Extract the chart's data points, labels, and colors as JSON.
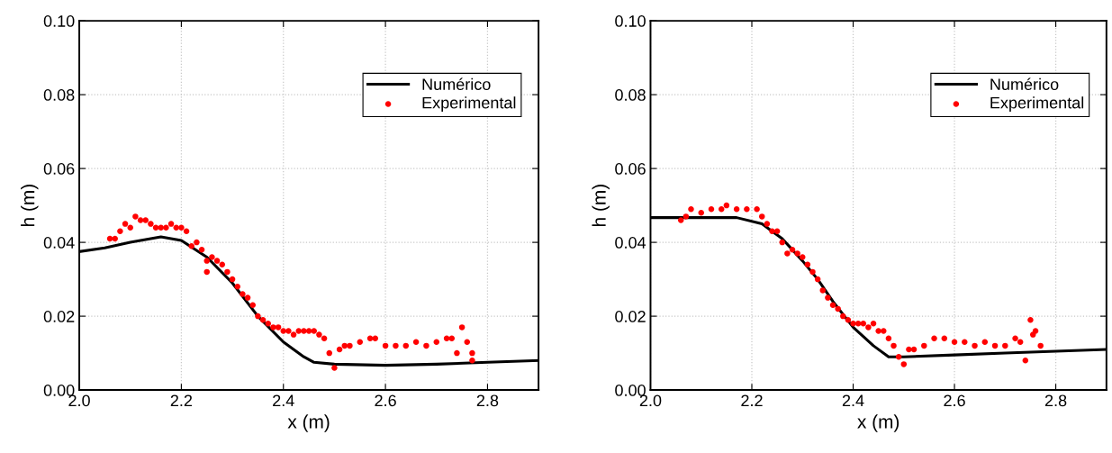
{
  "chart_data": [
    {
      "type": "line",
      "xlabel": "x (m)",
      "ylabel": "h (m)",
      "xlim": [
        2.0,
        2.9
      ],
      "ylim": [
        0.0,
        0.1
      ],
      "xticks": [
        {
          "value": 2.0,
          "label": "2.0"
        },
        {
          "value": 2.2,
          "label": "2.2"
        },
        {
          "value": 2.4,
          "label": "2.4"
        },
        {
          "value": 2.6,
          "label": "2.6"
        },
        {
          "value": 2.8,
          "label": "2.8"
        }
      ],
      "yticks": [
        {
          "value": 0.0,
          "label": "0.00"
        },
        {
          "value": 0.02,
          "label": "0.02"
        },
        {
          "value": 0.04,
          "label": "0.04"
        },
        {
          "value": 0.06,
          "label": "0.06"
        },
        {
          "value": 0.08,
          "label": "0.08"
        },
        {
          "value": 0.1,
          "label": "0.10"
        }
      ],
      "grid": true,
      "legend": "top right",
      "series": [
        {
          "name": "Numérico",
          "color": "#000000",
          "marker": "none",
          "line_style": "solid",
          "x": [
            2.0,
            2.05,
            2.1,
            2.16,
            2.2,
            2.25,
            2.3,
            2.35,
            2.4,
            2.44,
            2.46,
            2.5,
            2.6,
            2.7,
            2.8,
            2.9
          ],
          "values": [
            0.0375,
            0.0385,
            0.04,
            0.0415,
            0.0405,
            0.036,
            0.029,
            0.02,
            0.013,
            0.009,
            0.0075,
            0.007,
            0.0067,
            0.007,
            0.0075,
            0.008
          ]
        },
        {
          "name": "Experimental",
          "type": "scatter",
          "color": "#ff0000",
          "marker": "circle",
          "x": [
            2.06,
            2.07,
            2.08,
            2.09,
            2.1,
            2.11,
            2.12,
            2.13,
            2.14,
            2.15,
            2.16,
            2.17,
            2.18,
            2.19,
            2.2,
            2.21,
            2.22,
            2.23,
            2.24,
            2.25,
            2.25,
            2.26,
            2.27,
            2.28,
            2.29,
            2.3,
            2.31,
            2.32,
            2.33,
            2.34,
            2.35,
            2.36,
            2.37,
            2.38,
            2.39,
            2.4,
            2.41,
            2.42,
            2.43,
            2.44,
            2.45,
            2.46,
            2.47,
            2.48,
            2.49,
            2.5,
            2.51,
            2.52,
            2.53,
            2.55,
            2.57,
            2.58,
            2.6,
            2.62,
            2.64,
            2.66,
            2.68,
            2.7,
            2.72,
            2.73,
            2.74,
            2.75,
            2.76,
            2.77,
            2.77
          ],
          "values": [
            0.041,
            0.041,
            0.043,
            0.045,
            0.044,
            0.047,
            0.046,
            0.046,
            0.045,
            0.044,
            0.044,
            0.044,
            0.045,
            0.044,
            0.044,
            0.043,
            0.039,
            0.04,
            0.038,
            0.035,
            0.032,
            0.036,
            0.035,
            0.034,
            0.032,
            0.03,
            0.028,
            0.026,
            0.025,
            0.023,
            0.02,
            0.019,
            0.018,
            0.017,
            0.017,
            0.016,
            0.016,
            0.015,
            0.016,
            0.016,
            0.016,
            0.016,
            0.015,
            0.014,
            0.01,
            0.006,
            0.011,
            0.012,
            0.012,
            0.013,
            0.014,
            0.014,
            0.012,
            0.012,
            0.012,
            0.013,
            0.012,
            0.013,
            0.014,
            0.014,
            0.01,
            0.017,
            0.013,
            0.01,
            0.008
          ]
        }
      ]
    },
    {
      "type": "line",
      "xlabel": "x (m)",
      "ylabel": "h (m)",
      "xlim": [
        2.0,
        2.9
      ],
      "ylim": [
        0.0,
        0.1
      ],
      "xticks": [
        {
          "value": 2.0,
          "label": "2.0"
        },
        {
          "value": 2.2,
          "label": "2.2"
        },
        {
          "value": 2.4,
          "label": "2.4"
        },
        {
          "value": 2.6,
          "label": "2.6"
        },
        {
          "value": 2.8,
          "label": "2.8"
        }
      ],
      "yticks": [
        {
          "value": 0.0,
          "label": "0.00"
        },
        {
          "value": 0.02,
          "label": "0.02"
        },
        {
          "value": 0.04,
          "label": "0.04"
        },
        {
          "value": 0.06,
          "label": "0.06"
        },
        {
          "value": 0.08,
          "label": "0.08"
        },
        {
          "value": 0.1,
          "label": "0.10"
        }
      ],
      "grid": true,
      "legend": "top right",
      "series": [
        {
          "name": "Numérico",
          "color": "#000000",
          "marker": "none",
          "line_style": "solid",
          "x": [
            2.0,
            2.17,
            2.22,
            2.26,
            2.3,
            2.33,
            2.36,
            2.4,
            2.44,
            2.47,
            2.5,
            2.6,
            2.7,
            2.8,
            2.9
          ],
          "values": [
            0.0467,
            0.0467,
            0.045,
            0.041,
            0.035,
            0.03,
            0.024,
            0.017,
            0.012,
            0.009,
            0.009,
            0.0095,
            0.01,
            0.0105,
            0.011
          ]
        },
        {
          "name": "Experimental",
          "type": "scatter",
          "color": "#ff0000",
          "marker": "circle",
          "x": [
            2.06,
            2.07,
            2.08,
            2.1,
            2.12,
            2.14,
            2.15,
            2.17,
            2.19,
            2.21,
            2.22,
            2.23,
            2.24,
            2.25,
            2.26,
            2.27,
            2.28,
            2.29,
            2.3,
            2.31,
            2.32,
            2.33,
            2.34,
            2.35,
            2.36,
            2.37,
            2.38,
            2.39,
            2.4,
            2.41,
            2.42,
            2.43,
            2.44,
            2.45,
            2.46,
            2.47,
            2.48,
            2.49,
            2.5,
            2.51,
            2.52,
            2.54,
            2.56,
            2.58,
            2.6,
            2.62,
            2.64,
            2.66,
            2.68,
            2.7,
            2.72,
            2.73,
            2.74,
            2.75,
            2.755,
            2.76,
            2.77
          ],
          "values": [
            0.046,
            0.047,
            0.049,
            0.048,
            0.049,
            0.049,
            0.05,
            0.049,
            0.049,
            0.049,
            0.047,
            0.045,
            0.043,
            0.043,
            0.04,
            0.037,
            0.038,
            0.037,
            0.036,
            0.034,
            0.032,
            0.03,
            0.027,
            0.025,
            0.023,
            0.022,
            0.02,
            0.019,
            0.018,
            0.018,
            0.018,
            0.017,
            0.018,
            0.016,
            0.016,
            0.014,
            0.012,
            0.009,
            0.007,
            0.011,
            0.011,
            0.012,
            0.014,
            0.014,
            0.013,
            0.013,
            0.012,
            0.013,
            0.012,
            0.012,
            0.014,
            0.013,
            0.008,
            0.019,
            0.015,
            0.016,
            0.012
          ]
        }
      ]
    }
  ]
}
